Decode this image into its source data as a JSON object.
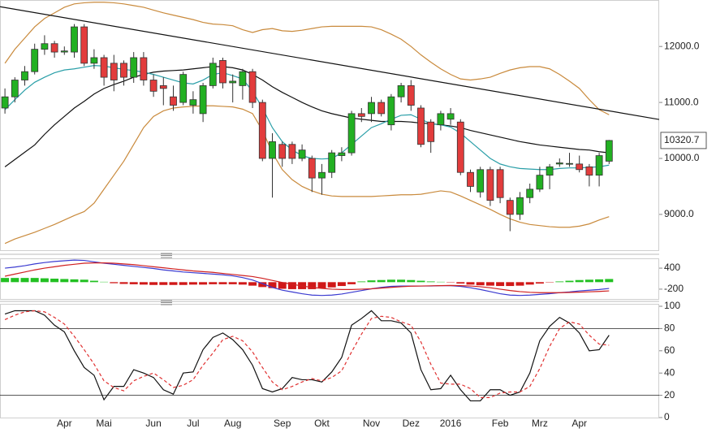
{
  "chart_data": [
    {
      "type": "candlestick",
      "up_color": "#22b022",
      "down_color": "#e23c3c",
      "ylim": [
        8360,
        12830
      ],
      "yticks": [
        {
          "value": 9000,
          "label": "9000.0"
        },
        {
          "value": 10000,
          "label": "10000.0"
        },
        {
          "value": 11000,
          "label": "11000.0"
        },
        {
          "value": 12000,
          "label": "12000.0"
        }
      ],
      "open": [
        10900,
        11100,
        11400,
        11550,
        11950,
        12050,
        11900,
        11900,
        12350,
        11700,
        11800,
        11700,
        11700,
        11450,
        11800,
        11400,
        11300,
        11100,
        11000,
        10950,
        10800,
        11300,
        11750,
        11350,
        11300,
        11550,
        11000,
        10000,
        10250,
        10250,
        10000,
        10000,
        9650,
        9750,
        10050,
        10100,
        10800,
        10800,
        11000,
        10600,
        11100,
        11300,
        10900,
        10650,
        10600,
        10700,
        10650,
        9750,
        9400,
        9800,
        9800,
        9250,
        9000,
        9300,
        9450,
        9700,
        9900,
        9900,
        9900,
        9850,
        9700,
        9950
      ],
      "high": [
        11250,
        11450,
        11650,
        12050,
        12200,
        12100,
        12000,
        12400,
        12400,
        11950,
        11850,
        11850,
        11750,
        11900,
        11900,
        11500,
        11450,
        11300,
        11550,
        11200,
        11350,
        11800,
        11800,
        11500,
        11600,
        11600,
        11050,
        10450,
        10300,
        10300,
        10250,
        10050,
        9900,
        10150,
        10200,
        10850,
        10900,
        11100,
        11050,
        11150,
        11350,
        11400,
        10950,
        10700,
        10850,
        10900,
        10700,
        9800,
        9850,
        9850,
        9850,
        9300,
        9400,
        9550,
        9850,
        9900,
        10000,
        10100,
        10050,
        9900,
        10100,
        10330
      ],
      "low": [
        10800,
        11000,
        11300,
        11500,
        11850,
        11800,
        11850,
        11800,
        11650,
        11600,
        11300,
        11200,
        11300,
        11350,
        11300,
        11100,
        10950,
        10850,
        10950,
        10800,
        10650,
        11250,
        11250,
        11000,
        11050,
        10900,
        9950,
        9300,
        9850,
        9900,
        9950,
        9400,
        9350,
        9650,
        9950,
        10050,
        10650,
        10650,
        10750,
        10500,
        11000,
        10850,
        10200,
        10100,
        10500,
        10600,
        9700,
        9400,
        9300,
        9150,
        9200,
        8700,
        8900,
        9200,
        9400,
        9450,
        9850,
        9850,
        9750,
        9500,
        9500,
        9900
      ],
      "close": [
        11100,
        11400,
        11550,
        11950,
        12050,
        11900,
        11920,
        12350,
        11700,
        11800,
        11450,
        11400,
        11450,
        11800,
        11400,
        11200,
        11250,
        10950,
        11500,
        11050,
        11300,
        11700,
        11350,
        11380,
        11550,
        11000,
        10000,
        10300,
        10000,
        10000,
        10150,
        9650,
        9750,
        10100,
        10100,
        10800,
        10750,
        11000,
        10800,
        11100,
        11300,
        10950,
        10250,
        10300,
        10800,
        10800,
        9750,
        9500,
        9800,
        9250,
        9300,
        9000,
        9300,
        9450,
        9700,
        9850,
        9920,
        9910,
        9800,
        9700,
        10050,
        10320.7
      ],
      "lines": [
        {
          "color": "#c98a3c",
          "values": [
            11700,
            11950,
            12150,
            12350,
            12500,
            12600,
            12700,
            12760,
            12780,
            12790,
            12790,
            12780,
            12760,
            12730,
            12700,
            12650,
            12600,
            12560,
            12520,
            12480,
            12430,
            12400,
            12390,
            12370,
            12300,
            12250,
            12300,
            12320,
            12280,
            12270,
            12290,
            12320,
            12350,
            12360,
            12360,
            12360,
            12360,
            12350,
            12300,
            12220,
            12130,
            12000,
            11850,
            11720,
            11600,
            11500,
            11420,
            11400,
            11420,
            11450,
            11520,
            11580,
            11620,
            11640,
            11640,
            11600,
            11500,
            11380,
            11250,
            11050,
            10870,
            10780
          ]
        },
        {
          "color": "#c98a3c",
          "values": [
            8480,
            8560,
            8620,
            8680,
            8750,
            8820,
            8900,
            8980,
            9050,
            9200,
            9450,
            9700,
            9950,
            10250,
            10550,
            10750,
            10850,
            10900,
            10920,
            10930,
            10940,
            10940,
            10930,
            10920,
            10880,
            10800,
            10500,
            10100,
            9800,
            9620,
            9500,
            9420,
            9360,
            9330,
            9320,
            9320,
            9320,
            9320,
            9330,
            9340,
            9350,
            9350,
            9360,
            9390,
            9420,
            9400,
            9330,
            9250,
            9170,
            9090,
            9000,
            8920,
            8860,
            8820,
            8800,
            8780,
            8770,
            8770,
            8790,
            8830,
            8900,
            8960
          ]
        },
        {
          "color": "#111111",
          "values": [
            9850,
            9980,
            10110,
            10240,
            10430,
            10600,
            10750,
            10900,
            11020,
            11150,
            11250,
            11320,
            11380,
            11450,
            11500,
            11540,
            11560,
            11570,
            11580,
            11600,
            11620,
            11640,
            11640,
            11620,
            11580,
            11500,
            11400,
            11280,
            11180,
            11090,
            11000,
            10920,
            10850,
            10800,
            10760,
            10720,
            10700,
            10680,
            10660,
            10660,
            10660,
            10650,
            10630,
            10620,
            10600,
            10580,
            10550,
            10500,
            10460,
            10420,
            10380,
            10340,
            10300,
            10270,
            10240,
            10220,
            10200,
            10180,
            10160,
            10150,
            10120,
            10100
          ]
        },
        {
          "color": "#2a9fa8",
          "values": [
            10870,
            11050,
            11220,
            11360,
            11450,
            11530,
            11580,
            11600,
            11630,
            11660,
            11650,
            11620,
            11590,
            11570,
            11540,
            11500,
            11450,
            11400,
            11350,
            11330,
            11400,
            11500,
            11530,
            11480,
            11420,
            11200,
            10900,
            10550,
            10300,
            10150,
            10050,
            10000,
            9990,
            10000,
            10100,
            10250,
            10400,
            10550,
            10620,
            10700,
            10770,
            10780,
            10700,
            10620,
            10600,
            10560,
            10450,
            10300,
            10150,
            10000,
            9900,
            9850,
            9820,
            9810,
            9800,
            9800,
            9820,
            9830,
            9830,
            9840,
            9850,
            9880
          ]
        }
      ],
      "trendline": {
        "color": "#111111",
        "values": [
          12710,
          10696
        ]
      }
    },
    {
      "type": "macd",
      "ylim": [
        -480,
        680
      ],
      "yticks": [
        400,
        -200
      ],
      "up_color": "#22c022",
      "down_color": "#d01818",
      "histogram": [
        120,
        120,
        120,
        120,
        110,
        100,
        90,
        80,
        70,
        40,
        10,
        -30,
        -50,
        -60,
        -70,
        -80,
        -80,
        -80,
        -80,
        -70,
        -70,
        -60,
        -60,
        -60,
        -70,
        -100,
        -140,
        -170,
        -190,
        -200,
        -200,
        -200,
        -180,
        -150,
        -110,
        -60,
        20,
        50,
        60,
        70,
        70,
        60,
        40,
        20,
        10,
        -10,
        -40,
        -70,
        -90,
        -100,
        -110,
        -110,
        -100,
        -70,
        -40,
        -10,
        20,
        40,
        60,
        70,
        80,
        90
      ],
      "series": [
        {
          "color": "#3a3ad0",
          "values": [
            400,
            430,
            470,
            520,
            560,
            590,
            610,
            630,
            620,
            580,
            540,
            510,
            480,
            450,
            420,
            390,
            350,
            320,
            290,
            270,
            250,
            230,
            210,
            180,
            130,
            60,
            -40,
            -150,
            -230,
            -280,
            -330,
            -370,
            -380,
            -370,
            -340,
            -290,
            -240,
            -190,
            -150,
            -120,
            -110,
            -110,
            -110,
            -110,
            -100,
            -100,
            -120,
            -160,
            -210,
            -270,
            -330,
            -370,
            -380,
            -370,
            -350,
            -330,
            -300,
            -280,
            -250,
            -230,
            -210,
            -180
          ]
        },
        {
          "color": "#d02020",
          "values": [
            170,
            230,
            290,
            350,
            400,
            440,
            480,
            510,
            540,
            550,
            550,
            540,
            520,
            500,
            470,
            440,
            410,
            380,
            350,
            320,
            300,
            280,
            250,
            220,
            190,
            160,
            110,
            50,
            -10,
            -60,
            -110,
            -150,
            -180,
            -200,
            -210,
            -210,
            -200,
            -190,
            -170,
            -150,
            -130,
            -115,
            -110,
            -105,
            -100,
            -95,
            -100,
            -110,
            -130,
            -160,
            -200,
            -240,
            -270,
            -290,
            -300,
            -300,
            -300,
            -295,
            -285,
            -275,
            -265,
            -250
          ]
        }
      ]
    },
    {
      "type": "stochastic",
      "ylim": [
        0,
        100
      ],
      "yticks": [
        0,
        20,
        40,
        60,
        80,
        100
      ],
      "levels": [
        20,
        80
      ],
      "categories": [
        null,
        null,
        null,
        null,
        null,
        null,
        "Apr",
        null,
        null,
        null,
        "Mai",
        null,
        null,
        null,
        null,
        "Jun",
        null,
        null,
        null,
        "Jul",
        null,
        null,
        null,
        "Aug",
        null,
        null,
        null,
        null,
        "Sep",
        null,
        null,
        null,
        "Okt",
        null,
        null,
        null,
        null,
        "Nov",
        null,
        null,
        null,
        "Dez",
        null,
        null,
        null,
        "2016",
        null,
        null,
        null,
        null,
        "Feb",
        null,
        null,
        null,
        "Mrz",
        null,
        null,
        null,
        "Apr",
        null,
        null,
        null
      ],
      "series": [
        {
          "color": "#111111",
          "values": [
            93,
            96,
            96,
            96,
            92,
            83,
            77,
            60,
            45,
            38,
            16,
            28,
            28,
            43,
            40,
            36,
            25,
            21,
            40,
            41,
            61,
            72,
            76,
            70,
            61,
            47,
            26,
            23,
            26,
            36,
            34,
            34,
            32,
            41,
            54,
            83,
            89,
            96,
            87,
            87,
            85,
            76,
            43,
            25,
            26,
            38,
            25,
            15,
            15,
            25,
            25,
            20,
            23,
            40,
            69,
            82,
            90,
            85,
            76,
            60,
            61,
            74
          ]
        },
        {
          "color": "#e03030",
          "dashed": true,
          "values": [
            88,
            92,
            95,
            96,
            95,
            90,
            84,
            73,
            61,
            48,
            33,
            27,
            24,
            33,
            37,
            40,
            34,
            27,
            29,
            34,
            47,
            58,
            70,
            73,
            69,
            59,
            45,
            32,
            25,
            28,
            32,
            35,
            33,
            36,
            42,
            59,
            75,
            89,
            91,
            90,
            86,
            83,
            68,
            48,
            31,
            30,
            30,
            26,
            18,
            18,
            22,
            23,
            23,
            28,
            44,
            64,
            80,
            86,
            84,
            74,
            66,
            65
          ]
        }
      ]
    }
  ]
}
